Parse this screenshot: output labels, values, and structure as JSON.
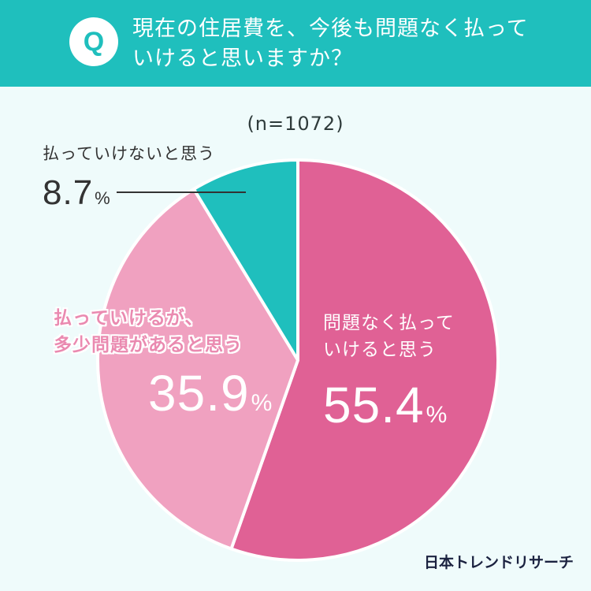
{
  "question": {
    "badge": "Q",
    "line1": "現在の住居費を、今後も問題なく払って",
    "line2": "いけると思いますか？"
  },
  "sample_size": "(n=1072)",
  "brand": "日本トレンドリサーチ",
  "colors": {
    "header": "#1fbfbd",
    "background": "#effbfb",
    "slice_yes": "#e06195",
    "slice_mostly": "#f0a1c0",
    "slice_no": "#1fbfbd"
  },
  "chart_data": {
    "type": "pie",
    "title": "現在の住居費を、今後も問題なく払っていけると思いますか？",
    "subtitle": "(n=1072)",
    "unit": "%",
    "slices": [
      {
        "label_line1": "問題なく払って",
        "label_line2": "いけると思う",
        "value": 55.4,
        "display": "55.4",
        "color": "#e06195"
      },
      {
        "label_line1": "払っていけるが、",
        "label_line2": "多少問題があると思う",
        "value": 35.9,
        "display": "35.9",
        "color": "#f0a1c0"
      },
      {
        "label_line1": "払っていけないと思う",
        "label_line2": "",
        "value": 8.7,
        "display": "8.7",
        "color": "#1fbfbd"
      }
    ]
  }
}
